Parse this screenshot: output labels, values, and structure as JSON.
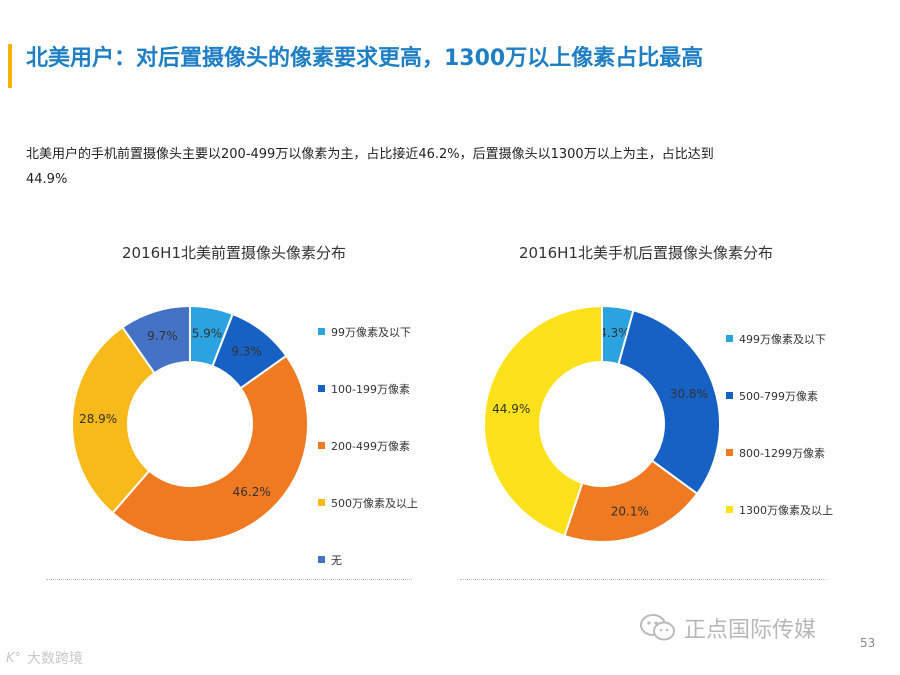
{
  "header": {
    "title": "北美用户：对后置摄像头的像素要求更高，1300万以上像素占比最高",
    "description": "北美用户的手机前置摄像头主要以200-499万以像素为主，占比接近46.2%，后置摄像头以1300万以上为主，占比达到44.9%"
  },
  "chart_data": [
    {
      "type": "pie",
      "variant": "donut",
      "title": "2016H1北美前置摄像头像素分布",
      "categories": [
        "99万像素及以下",
        "100-199万像素",
        "200-499万像素",
        "500万像素及以上",
        "无"
      ],
      "values": [
        5.9,
        9.3,
        46.2,
        28.9,
        9.7
      ],
      "labels": [
        "5.9%",
        "9.3%",
        "46.2%",
        "28.9%",
        "9.7%"
      ],
      "colors": [
        "#2aa3e0",
        "#1761c5",
        "#f07a22",
        "#f8b91a",
        "#4472c4"
      ],
      "legend_position": "right"
    },
    {
      "type": "pie",
      "variant": "donut",
      "title": "2016H1北美手机后置摄像头像素分布",
      "categories": [
        "499万像素及以下",
        "500-799万像素",
        "800-1299万像素",
        "1300万像素及以上"
      ],
      "values": [
        4.3,
        30.8,
        20.1,
        44.9
      ],
      "labels": [
        "4.3%",
        "30.8%",
        "20.1%",
        "44.9%"
      ],
      "colors": [
        "#2aa3e0",
        "#1761c5",
        "#f07a22",
        "#fde11a"
      ],
      "legend_position": "right"
    }
  ],
  "footer": {
    "watermark": "正点国际传媒",
    "page_number": "53",
    "left_watermark": "大数跨境",
    "left_logo": "K°"
  }
}
